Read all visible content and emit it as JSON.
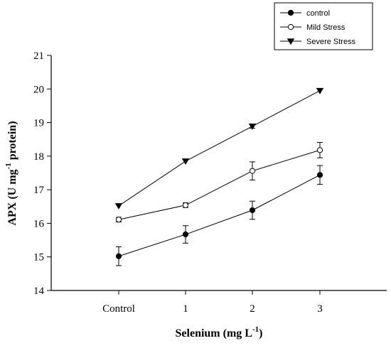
{
  "chart_data": {
    "type": "line",
    "categories": [
      "Control",
      "1",
      "2",
      "3"
    ],
    "xlabel": {
      "main": "Selenium (mg L",
      "sup": "-1",
      "tail": ")"
    },
    "ylabel": {
      "main": "APX (U mg",
      "sup": "-1",
      "tail": " protein)"
    },
    "ylim": [
      14,
      21
    ],
    "yticks": [
      "14",
      "15",
      "16",
      "17",
      "18",
      "19",
      "20",
      "21"
    ],
    "grid": false,
    "legend_position": "top-right",
    "series": [
      {
        "name": "control",
        "marker": "filled-circle",
        "values": [
          15.02,
          15.67,
          16.39,
          17.44
        ],
        "errors": [
          0.28,
          0.26,
          0.27,
          0.28
        ]
      },
      {
        "name": "Mild Stress",
        "marker": "open-circle",
        "values": [
          16.11,
          16.54,
          17.56,
          18.18
        ],
        "errors": [
          0.07,
          0.07,
          0.27,
          0.23
        ]
      },
      {
        "name": "Severe Stress",
        "marker": "filled-triangle-down",
        "values": [
          16.52,
          17.85,
          18.89,
          19.95
        ],
        "errors": [
          0.03,
          0.03,
          0.06,
          0.03
        ]
      }
    ],
    "colors": {
      "line": "#000000",
      "open_marker_fill": "#ffffff"
    }
  }
}
